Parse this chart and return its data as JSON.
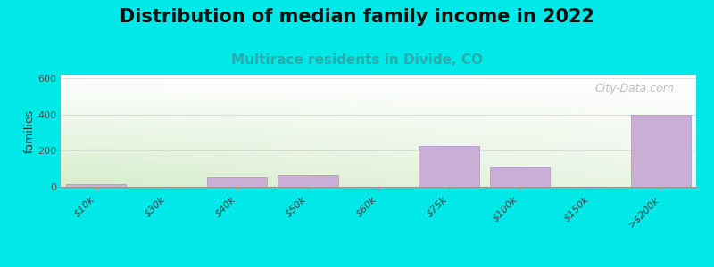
{
  "title": "Distribution of median family income in 2022",
  "subtitle": "Multirace residents in Divide, CO",
  "categories": [
    "$10k",
    "$30k",
    "$40k",
    "$50k",
    "$60k",
    "$75k",
    "$100k",
    "$150k",
    ">$200k"
  ],
  "values": [
    15,
    0,
    55,
    65,
    0,
    225,
    110,
    0,
    400
  ],
  "bar_color": "#c9aed6",
  "bar_edge_color": "#b898cc",
  "ylabel": "families",
  "ylim": [
    0,
    620
  ],
  "yticks": [
    0,
    200,
    400,
    600
  ],
  "background_figure": "#00e8e8",
  "title_fontsize": 15,
  "subtitle_fontsize": 11,
  "subtitle_color": "#2aacac",
  "watermark": "City-Data.com",
  "grid_color": "#cccccc",
  "tick_label_fontsize": 8,
  "ylabel_fontsize": 9
}
